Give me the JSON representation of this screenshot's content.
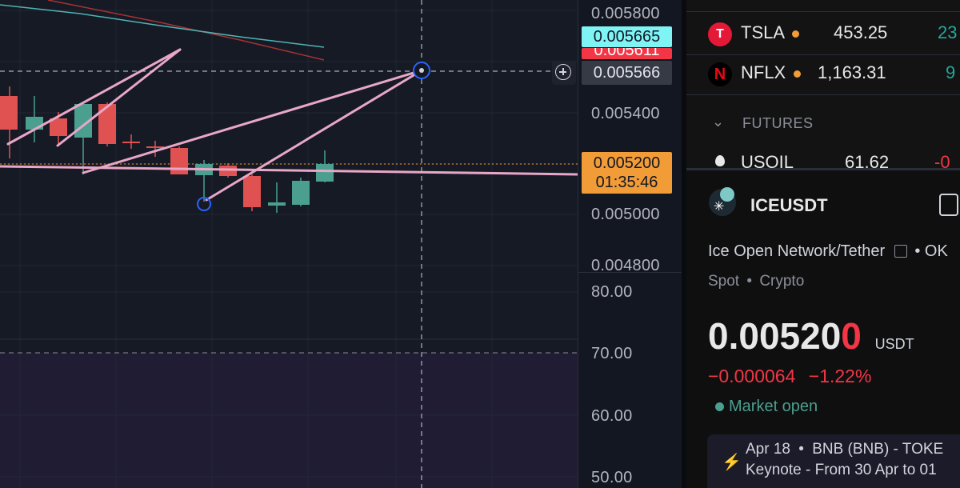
{
  "price_scale": {
    "ticks": [
      "0.005800",
      "0.005400",
      "0.005000",
      "0.004800"
    ],
    "current_price": "0.005200",
    "countdown": "01:35:46",
    "label_cyan": "0.005665",
    "label_red_partial": "0.005611",
    "crosshair_price": "0.005566"
  },
  "rsi_scale": {
    "ticks": [
      "80.00",
      "70.00",
      "60.00",
      "50.00"
    ]
  },
  "colors": {
    "up": "#4a9f8f",
    "down": "#e05252",
    "drawing": "#e8a7c8",
    "current_price_bg": "#f29c38",
    "cyan_label_bg": "#7ef4f5",
    "red_label_bg": "#f23645"
  },
  "watchlist": {
    "rows": [
      {
        "symbol": "TSLA",
        "icon": "tesla-icon",
        "price": "453.25",
        "change": "23"
      },
      {
        "symbol": "NFLX",
        "icon": "netflix-icon",
        "price": "1,163.31",
        "change": "9"
      }
    ],
    "section_label": "FUTURES",
    "futures_row": {
      "symbol": "USOIL",
      "price": "61.62",
      "change": "-0"
    }
  },
  "details": {
    "symbol": "ICEUSDT",
    "name": "Ice Open Network/Tether",
    "name_suffix": "• OK",
    "type": "Spot",
    "category": "Crypto",
    "price_main": "0.00520",
    "price_last_digit": "0",
    "currency": "USDT",
    "change_abs": "−0.000064",
    "change_pct": "−1.22%",
    "market_status": "Market open",
    "news_line1_date": "Apr 18",
    "news_line1_text": "BNB (BNB) - TOKE",
    "news_line2": "Keynote - From 30 Apr to 01"
  }
}
